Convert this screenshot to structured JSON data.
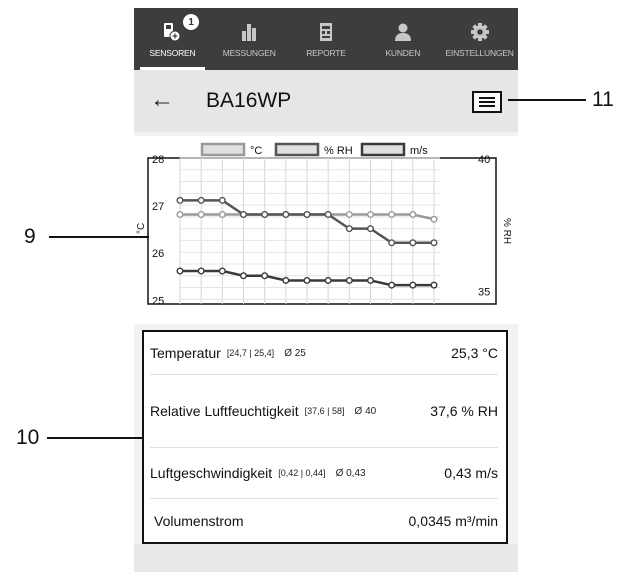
{
  "nav": {
    "tabs": [
      {
        "label": "SENSOREN",
        "icon": "sensor-icon",
        "badge": "1",
        "active": true
      },
      {
        "label": "MESSUNGEN",
        "icon": "bar-chart-icon",
        "active": false
      },
      {
        "label": "REPORTE",
        "icon": "report-icon",
        "active": false
      },
      {
        "label": "KUNDEN",
        "icon": "customer-icon",
        "active": false
      },
      {
        "label": "EINSTELLUNGEN",
        "icon": "gear-icon",
        "active": false
      }
    ]
  },
  "header": {
    "back_icon": "arrow-left-icon",
    "title": "BA16WP",
    "menu_icon": "hamburger-menu-icon"
  },
  "chart_data": {
    "type": "line",
    "legend": [
      "°C",
      "% RH",
      "m/s"
    ],
    "ylabel": "°C",
    "y2label": "% RH",
    "left_ticks": [
      "28",
      "27",
      "26",
      "25"
    ],
    "right_ticks": [
      "40",
      "35"
    ],
    "ylim": [
      24.9,
      28.0
    ],
    "y2lim": [
      34.5,
      40.0
    ],
    "x": [
      1,
      2,
      3,
      4,
      5,
      6,
      7,
      8,
      9,
      10,
      11,
      12,
      13
    ],
    "series": [
      {
        "name": "°C",
        "color": "#9a9a9a",
        "values": [
          26.8,
          26.8,
          26.8,
          26.8,
          26.8,
          26.8,
          26.8,
          26.8,
          26.8,
          26.8,
          26.8,
          26.8,
          26.7
        ]
      },
      {
        "name": "% RH",
        "color": "#555555",
        "values": [
          27.1,
          27.1,
          27.1,
          26.8,
          26.8,
          26.8,
          26.8,
          26.8,
          26.5,
          26.5,
          26.2,
          26.2,
          26.2
        ]
      },
      {
        "name": "m/s",
        "color": "#3a3a3a",
        "values": [
          25.6,
          25.6,
          25.6,
          25.5,
          25.5,
          25.4,
          25.4,
          25.4,
          25.4,
          25.4,
          25.3,
          25.3,
          25.3
        ]
      }
    ]
  },
  "measurements": [
    {
      "name": "Temperatur",
      "range": "[24,7 | 25,4]",
      "avg": "Ø 25",
      "value": "25,3 °C"
    },
    {
      "name": "Relative Luftfeuchtigkeit",
      "range": "[37,6 | 58]",
      "avg": "Ø 40",
      "value": "37,6 % RH"
    },
    {
      "name": "Luftgeschwindigkeit",
      "range": "[0,42 | 0,44]",
      "avg": "Ø 0,43",
      "value": "0,43 m/s"
    },
    {
      "name": "Volumenstrom",
      "range": "",
      "avg": "",
      "value": "0,0345 m³/min"
    }
  ],
  "callouts": {
    "chart": "9",
    "panel": "10",
    "menu": "11"
  },
  "colors": {
    "nav_bg": "#3d3d3d",
    "header_bg": "#e6e6e6",
    "series_temp": "#9a9a9a",
    "series_rh": "#555555",
    "series_air": "#3a3a3a"
  }
}
